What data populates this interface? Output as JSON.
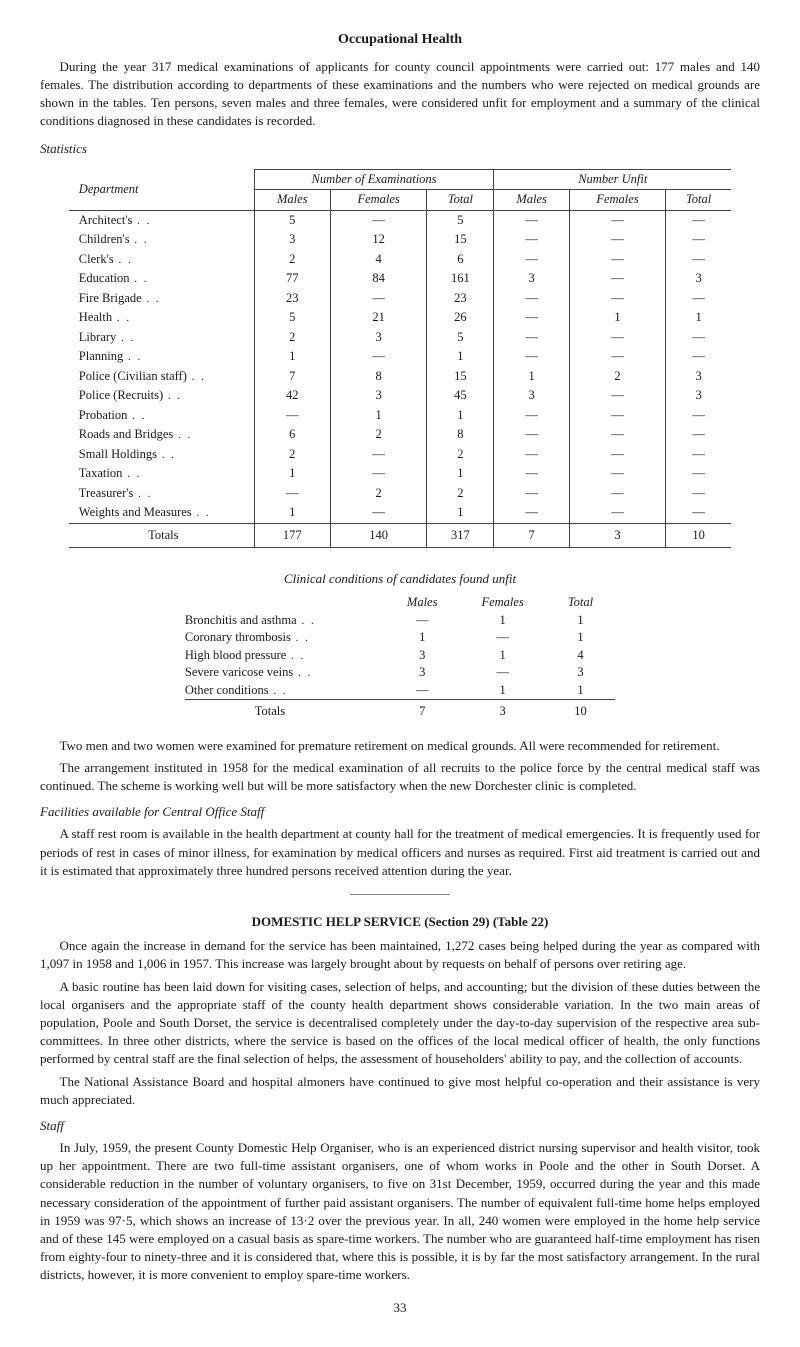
{
  "title": "Occupational Health",
  "intro": "During the year 317 medical examinations of applicants for county council appointments were carried out: 177 males and 140 females. The distribution according to departments of these examinations and the numbers who were rejected on medical grounds are shown in the tables. Ten persons, seven males and three females, were considered unfit for employment and a summary of the clinical conditions diagnosed in these candidates is recorded.",
  "statistics_label": "Statistics",
  "main_table": {
    "dept_header": "Department",
    "group1": "Number of Examinations",
    "group2": "Number Unfit",
    "col_males": "Males",
    "col_females": "Females",
    "col_total": "Total",
    "rows": [
      {
        "label": "Architect's",
        "m": "5",
        "f": "—",
        "t": "5",
        "um": "—",
        "uf": "—",
        "ut": "—"
      },
      {
        "label": "Children's",
        "m": "3",
        "f": "12",
        "t": "15",
        "um": "—",
        "uf": "—",
        "ut": "—"
      },
      {
        "label": "Clerk's",
        "m": "2",
        "f": "4",
        "t": "6",
        "um": "—",
        "uf": "—",
        "ut": "—"
      },
      {
        "label": "Education",
        "m": "77",
        "f": "84",
        "t": "161",
        "um": "3",
        "uf": "—",
        "ut": "3"
      },
      {
        "label": "Fire Brigade",
        "m": "23",
        "f": "—",
        "t": "23",
        "um": "—",
        "uf": "—",
        "ut": "—"
      },
      {
        "label": "Health",
        "m": "5",
        "f": "21",
        "t": "26",
        "um": "—",
        "uf": "1",
        "ut": "1"
      },
      {
        "label": "Library",
        "m": "2",
        "f": "3",
        "t": "5",
        "um": "—",
        "uf": "—",
        "ut": "—"
      },
      {
        "label": "Planning",
        "m": "1",
        "f": "—",
        "t": "1",
        "um": "—",
        "uf": "—",
        "ut": "—"
      },
      {
        "label": "Police (Civilian staff)",
        "m": "7",
        "f": "8",
        "t": "15",
        "um": "1",
        "uf": "2",
        "ut": "3"
      },
      {
        "label": "Police (Recruits)",
        "m": "42",
        "f": "3",
        "t": "45",
        "um": "3",
        "uf": "—",
        "ut": "3"
      },
      {
        "label": "Probation",
        "m": "—",
        "f": "1",
        "t": "1",
        "um": "—",
        "uf": "—",
        "ut": "—"
      },
      {
        "label": "Roads and Bridges",
        "m": "6",
        "f": "2",
        "t": "8",
        "um": "—",
        "uf": "—",
        "ut": "—"
      },
      {
        "label": "Small Holdings",
        "m": "2",
        "f": "—",
        "t": "2",
        "um": "—",
        "uf": "—",
        "ut": "—"
      },
      {
        "label": "Taxation",
        "m": "1",
        "f": "—",
        "t": "1",
        "um": "—",
        "uf": "—",
        "ut": "—"
      },
      {
        "label": "Treasurer's",
        "m": "—",
        "f": "2",
        "t": "2",
        "um": "—",
        "uf": "—",
        "ut": "—"
      },
      {
        "label": "Weights and Measures",
        "m": "1",
        "f": "—",
        "t": "1",
        "um": "—",
        "uf": "—",
        "ut": "—"
      }
    ],
    "totals": {
      "label": "Totals",
      "m": "177",
      "f": "140",
      "t": "317",
      "um": "7",
      "uf": "3",
      "ut": "10"
    }
  },
  "clinical": {
    "title": "Clinical conditions of candidates found unfit",
    "col_males": "Males",
    "col_females": "Females",
    "col_total": "Total",
    "rows": [
      {
        "label": "Bronchitis and asthma",
        "m": "—",
        "f": "1",
        "t": "1"
      },
      {
        "label": "Coronary thrombosis",
        "m": "1",
        "f": "—",
        "t": "1"
      },
      {
        "label": "High blood pressure",
        "m": "3",
        "f": "1",
        "t": "4"
      },
      {
        "label": "Severe varicose veins",
        "m": "3",
        "f": "—",
        "t": "3"
      },
      {
        "label": "Other conditions",
        "m": "—",
        "f": "1",
        "t": "1"
      }
    ],
    "totals": {
      "label": "Totals",
      "m": "7",
      "f": "3",
      "t": "10"
    }
  },
  "para_retirement": "Two men and two women were examined for premature retirement on medical grounds. All were recommended for retirement.",
  "para_dorchester": "The arrangement instituted in 1958 for the medical examination of all recruits to the police force by the central medical staff was continued. The scheme is working well but will be more satisfactory when the new Dorchester clinic is completed.",
  "facilities_label": "Facilities available for Central Office Staff",
  "para_facilities": "A staff rest room is available in the health department at county hall for the treatment of medical emergencies. It is frequently used for periods of rest in cases of minor illness, for examination by medical officers and nurses as required. First aid treatment is carried out and it is estimated that approximately three hundred persons received attention during the year.",
  "domestic_heading": "DOMESTIC HELP SERVICE (Section 29) (Table 22)",
  "para_domestic1": "Once again the increase in demand for the service has been maintained, 1,272 cases being helped during the year as compared with 1,097 in 1958 and 1,006 in 1957. This increase was largely brought about by requests on behalf of persons over retiring age.",
  "para_domestic2": "A basic routine has been laid down for visiting cases, selection of helps, and accounting; but the division of these duties between the local organisers and the appropriate staff of the county health department shows considerable variation. In the two main areas of population, Poole and South Dorset, the service is decentralised completely under the day-to-day supervision of the respective area sub-committees. In three other districts, where the service is based on the offices of the local medical officer of health, the only functions performed by central staff are the final selection of helps, the assessment of householders' ability to pay, and the collection of accounts.",
  "para_domestic3": "The National Assistance Board and hospital almoners have continued to give most helpful co-operation and their assistance is very much appreciated.",
  "staff_label": "Staff",
  "para_staff": "In July, 1959, the present County Domestic Help Organiser, who is an experienced district nursing supervisor and health visitor, took up her appointment. There are two full-time assistant organisers, one of whom works in Poole and the other in South Dorset. A considerable reduction in the number of voluntary organisers, to five on 31st December, 1959, occurred during the year and this made necessary consideration of the appointment of further paid assistant organisers. The number of equivalent full-time home helps employed in 1959 was 97·5, which shows an increase of 13·2 over the previous year. In all, 240 women were employed in the home help service and of these 145 were employed on a casual basis as spare-time workers. The number who are guaranteed half-time employment has risen from eighty-four to ninety-three and it is considered that, where this is possible, it is by far the most satisfactory arrangement. In the rural districts, however, it is more convenient to employ spare-time workers.",
  "page_number": "33"
}
